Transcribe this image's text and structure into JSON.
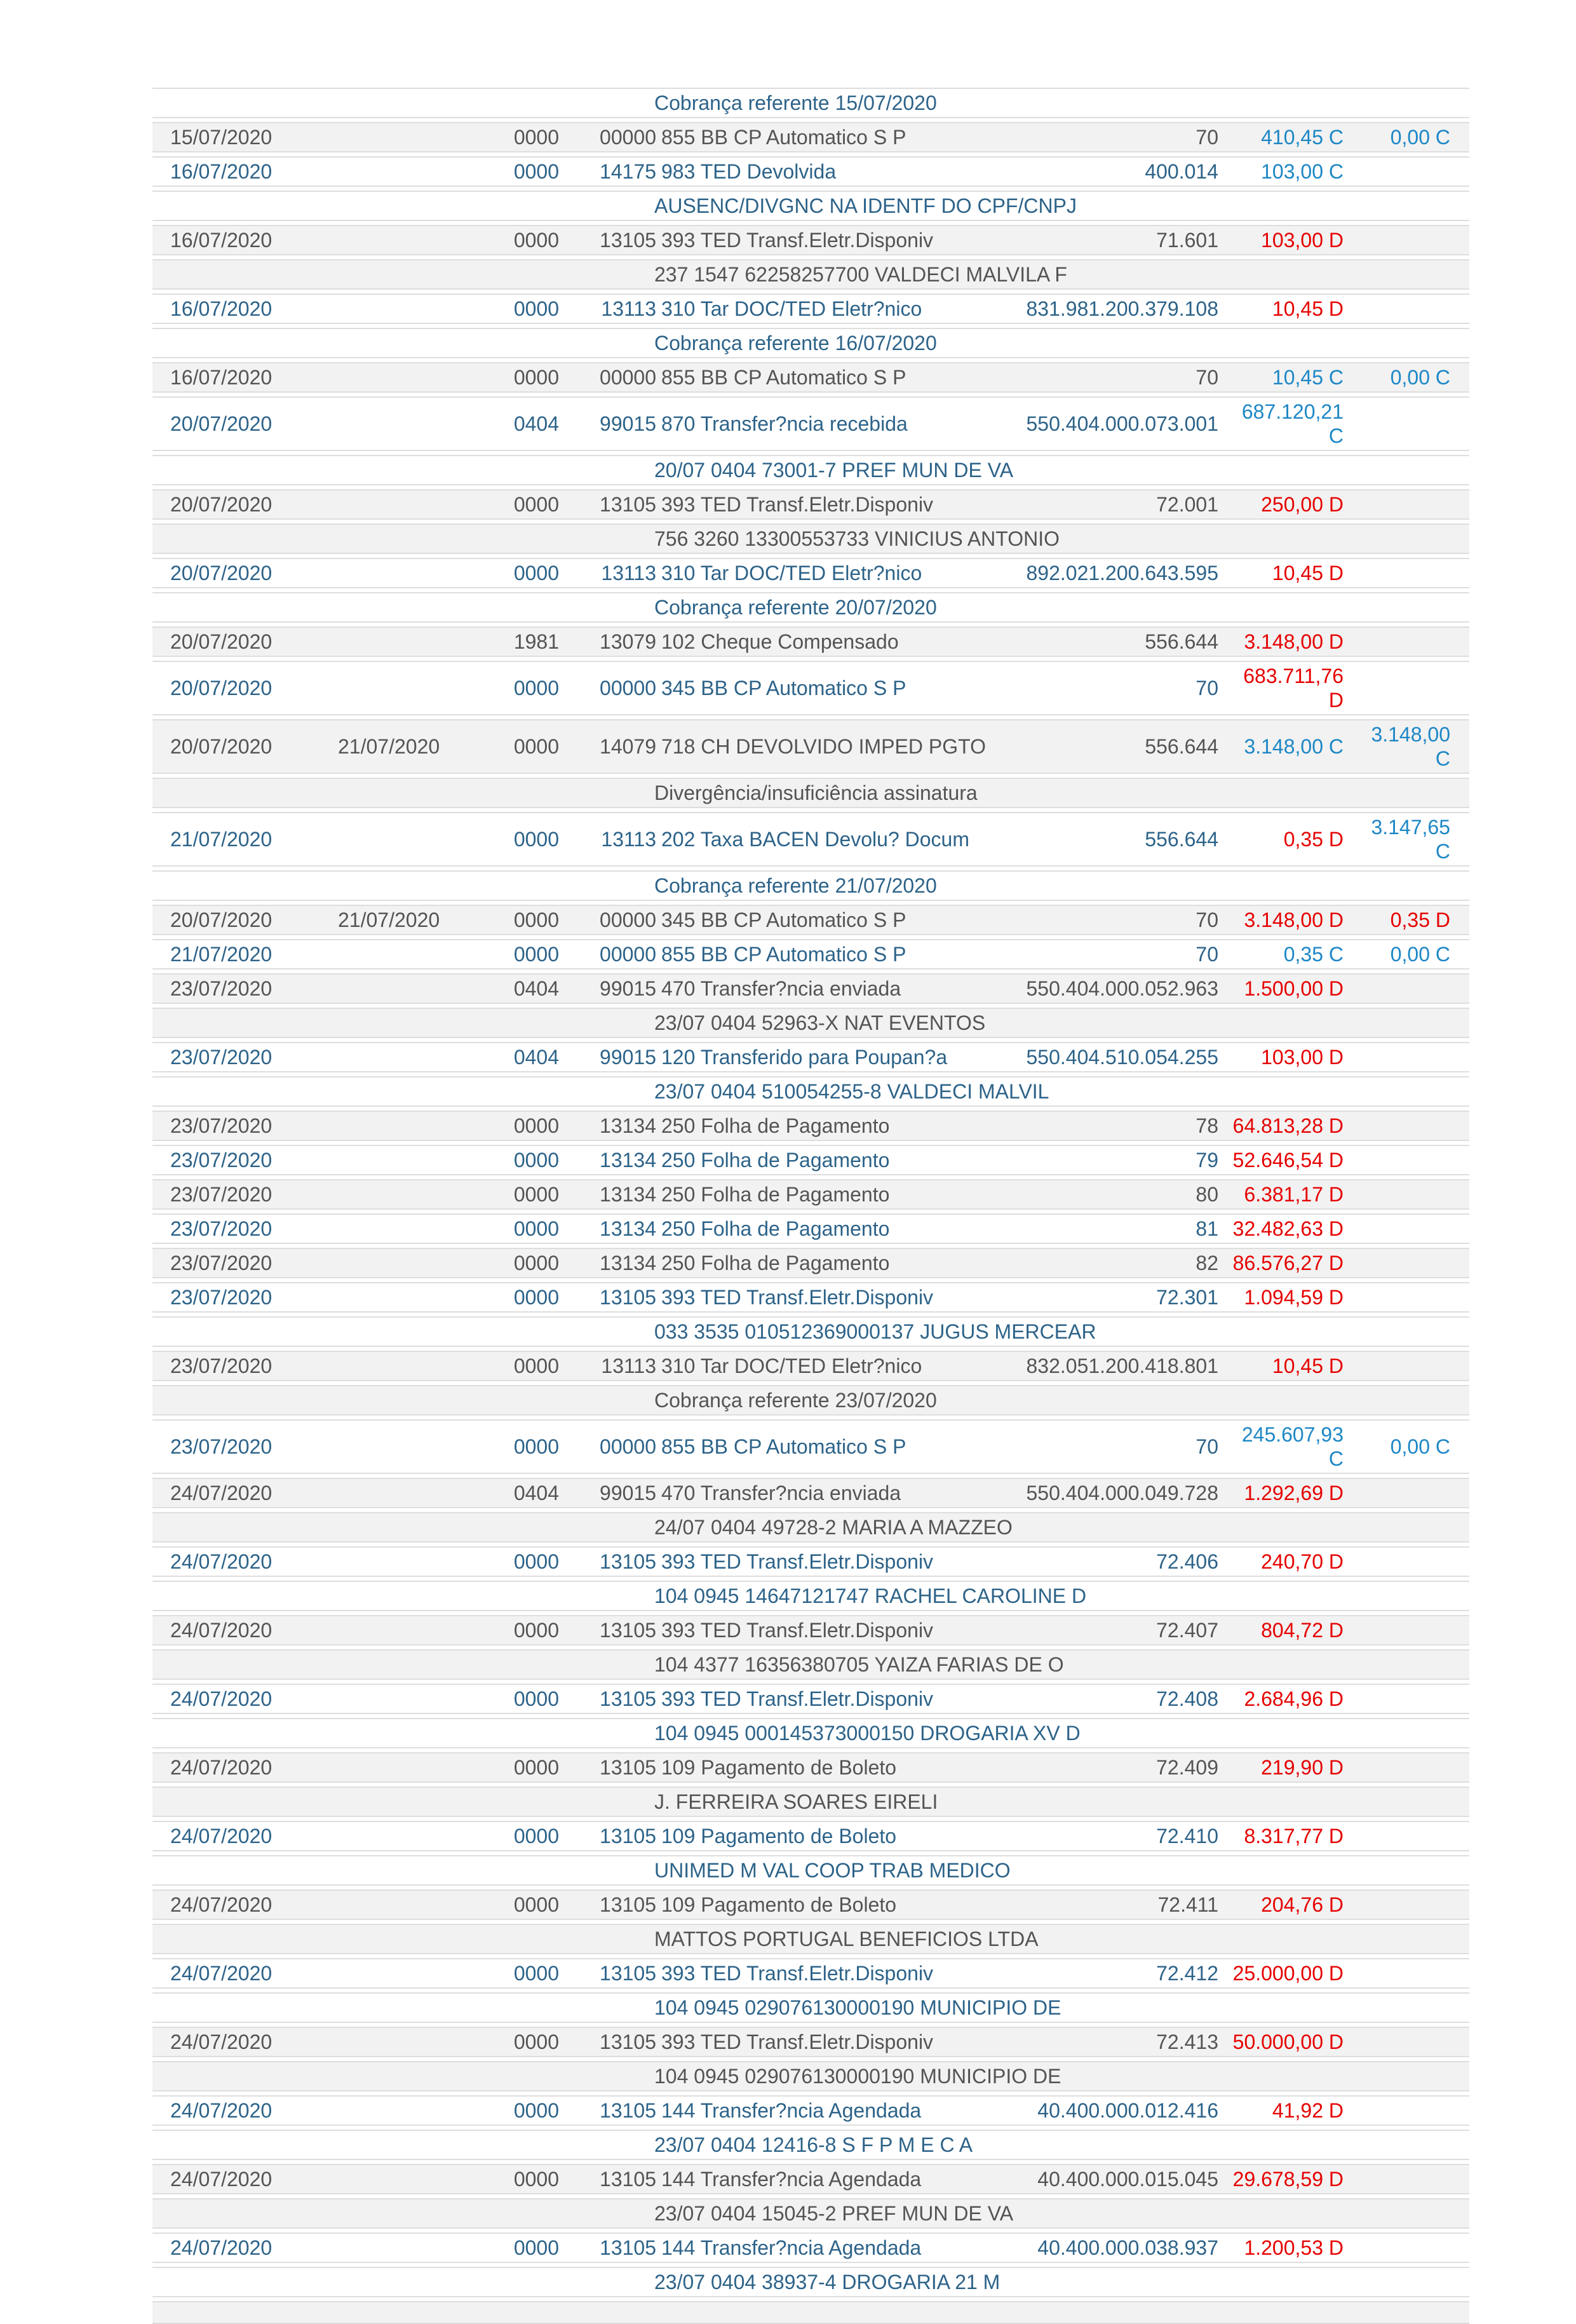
{
  "colors": {
    "row_gray_background": "#f2f2f2",
    "row_white_background": "#ffffff",
    "gray_row_text": "#545454",
    "white_row_text": "#2d6389",
    "credit_value": "#1d87c6",
    "debit_value": "#e60000",
    "row_border": "#dedede"
  },
  "statement": {
    "rows": [
      {
        "type": "header",
        "text": "Cobrança referente 15/07/2020"
      },
      {
        "type": "tx",
        "date1": "15/07/2020",
        "date2": "",
        "branch": "0000",
        "lote": "00000",
        "desc": "855 BB CP Automatico S P",
        "doc": "70",
        "value": "410,45 C",
        "balance": "0,00 C"
      },
      {
        "type": "tx",
        "date1": "16/07/2020",
        "date2": "",
        "branch": "0000",
        "lote": "14175",
        "desc": "983 TED Devolvida",
        "doc": "400.014",
        "value": "103,00 C",
        "balance": ""
      },
      {
        "type": "sub",
        "text": "AUSENC/DIVGNC NA IDENTF DO CPF/CNPJ"
      },
      {
        "type": "tx",
        "date1": "16/07/2020",
        "date2": "",
        "branch": "0000",
        "lote": "13105",
        "desc": "393 TED Transf.Eletr.Disponiv",
        "doc": "71.601",
        "value": "103,00 D",
        "balance": ""
      },
      {
        "type": "sub",
        "text": "237 1547 62258257700 VALDECI MALVILA F"
      },
      {
        "type": "tx",
        "date1": "16/07/2020",
        "date2": "",
        "branch": "0000",
        "lote": "13113",
        "desc": "310 Tar DOC/TED Eletr?nico",
        "doc": "831.981.200.379.108",
        "value": "10,45 D",
        "balance": ""
      },
      {
        "type": "header",
        "text": "Cobrança referente 16/07/2020"
      },
      {
        "type": "tx",
        "date1": "16/07/2020",
        "date2": "",
        "branch": "0000",
        "lote": "00000",
        "desc": "855 BB CP Automatico S P",
        "doc": "70",
        "value": "10,45 C",
        "balance": "0,00 C"
      },
      {
        "type": "tx",
        "date1": "20/07/2020",
        "date2": "",
        "branch": "0404",
        "lote": "99015",
        "desc": "870 Transfer?ncia recebida",
        "doc": "550.404.000.073.001",
        "value": "687.120,21 C",
        "balance": ""
      },
      {
        "type": "sub",
        "text": "20/07 0404 73001-7 PREF MUN DE VA"
      },
      {
        "type": "tx",
        "date1": "20/07/2020",
        "date2": "",
        "branch": "0000",
        "lote": "13105",
        "desc": "393 TED Transf.Eletr.Disponiv",
        "doc": "72.001",
        "value": "250,00 D",
        "balance": ""
      },
      {
        "type": "sub",
        "text": "756 3260 13300553733 VINICIUS ANTONIO"
      },
      {
        "type": "tx",
        "date1": "20/07/2020",
        "date2": "",
        "branch": "0000",
        "lote": "13113",
        "desc": "310 Tar DOC/TED Eletr?nico",
        "doc": "892.021.200.643.595",
        "value": "10,45 D",
        "balance": ""
      },
      {
        "type": "header",
        "text": "Cobrança referente 20/07/2020"
      },
      {
        "type": "tx",
        "date1": "20/07/2020",
        "date2": "",
        "branch": "1981",
        "lote": "13079",
        "desc": "102 Cheque Compensado",
        "doc": "556.644",
        "value": "3.148,00 D",
        "balance": ""
      },
      {
        "type": "tx",
        "date1": "20/07/2020",
        "date2": "",
        "branch": "0000",
        "lote": "00000",
        "desc": "345 BB CP Automatico S P",
        "doc": "70",
        "value": "683.711,76 D",
        "balance": ""
      },
      {
        "type": "tx",
        "date1": "20/07/2020",
        "date2": "21/07/2020",
        "branch": "0000",
        "lote": "14079",
        "desc": "718 CH DEVOLVIDO IMPED PGTO",
        "doc": "556.644",
        "value": "3.148,00 C",
        "balance": "3.148,00 C"
      },
      {
        "type": "sub",
        "text": "Divergência/insuficiência assinatura"
      },
      {
        "type": "tx",
        "date1": "21/07/2020",
        "date2": "",
        "branch": "0000",
        "lote": "13113",
        "desc": "202 Taxa BACEN Devolu? Docum",
        "doc": "556.644",
        "value": "0,35 D",
        "balance": "3.147,65 C"
      },
      {
        "type": "header",
        "text": "Cobrança referente 21/07/2020"
      },
      {
        "type": "tx",
        "date1": "20/07/2020",
        "date2": "21/07/2020",
        "branch": "0000",
        "lote": "00000",
        "desc": "345 BB CP Automatico S P",
        "doc": "70",
        "value": "3.148,00 D",
        "balance": "0,35 D"
      },
      {
        "type": "tx",
        "date1": "21/07/2020",
        "date2": "",
        "branch": "0000",
        "lote": "00000",
        "desc": "855 BB CP Automatico S P",
        "doc": "70",
        "value": "0,35 C",
        "balance": "0,00 C"
      },
      {
        "type": "tx",
        "date1": "23/07/2020",
        "date2": "",
        "branch": "0404",
        "lote": "99015",
        "desc": "470 Transfer?ncia enviada",
        "doc": "550.404.000.052.963",
        "value": "1.500,00 D",
        "balance": ""
      },
      {
        "type": "sub",
        "text": "23/07 0404 52963-X NAT EVENTOS"
      },
      {
        "type": "tx",
        "date1": "23/07/2020",
        "date2": "",
        "branch": "0404",
        "lote": "99015",
        "desc": "120 Transferido para Poupan?a",
        "doc": "550.404.510.054.255",
        "value": "103,00 D",
        "balance": ""
      },
      {
        "type": "sub",
        "text": "23/07 0404 510054255-8 VALDECI MALVIL"
      },
      {
        "type": "tx",
        "date1": "23/07/2020",
        "date2": "",
        "branch": "0000",
        "lote": "13134",
        "desc": "250 Folha de Pagamento",
        "doc": "78",
        "value": "64.813,28 D",
        "balance": ""
      },
      {
        "type": "tx",
        "date1": "23/07/2020",
        "date2": "",
        "branch": "0000",
        "lote": "13134",
        "desc": "250 Folha de Pagamento",
        "doc": "79",
        "value": "52.646,54 D",
        "balance": ""
      },
      {
        "type": "tx",
        "date1": "23/07/2020",
        "date2": "",
        "branch": "0000",
        "lote": "13134",
        "desc": "250 Folha de Pagamento",
        "doc": "80",
        "value": "6.381,17 D",
        "balance": ""
      },
      {
        "type": "tx",
        "date1": "23/07/2020",
        "date2": "",
        "branch": "0000",
        "lote": "13134",
        "desc": "250 Folha de Pagamento",
        "doc": "81",
        "value": "32.482,63 D",
        "balance": ""
      },
      {
        "type": "tx",
        "date1": "23/07/2020",
        "date2": "",
        "branch": "0000",
        "lote": "13134",
        "desc": "250 Folha de Pagamento",
        "doc": "82",
        "value": "86.576,27 D",
        "balance": ""
      },
      {
        "type": "tx",
        "date1": "23/07/2020",
        "date2": "",
        "branch": "0000",
        "lote": "13105",
        "desc": "393 TED Transf.Eletr.Disponiv",
        "doc": "72.301",
        "value": "1.094,59 D",
        "balance": ""
      },
      {
        "type": "sub",
        "text": "033 3535 010512369000137 JUGUS MERCEAR"
      },
      {
        "type": "tx",
        "date1": "23/07/2020",
        "date2": "",
        "branch": "0000",
        "lote": "13113",
        "desc": "310 Tar DOC/TED Eletr?nico",
        "doc": "832.051.200.418.801",
        "value": "10,45 D",
        "balance": ""
      },
      {
        "type": "header",
        "text": "Cobrança referente 23/07/2020"
      },
      {
        "type": "tx",
        "date1": "23/07/2020",
        "date2": "",
        "branch": "0000",
        "lote": "00000",
        "desc": "855 BB CP Automatico S P",
        "doc": "70",
        "value": "245.607,93 C",
        "balance": "0,00 C"
      },
      {
        "type": "tx",
        "date1": "24/07/2020",
        "date2": "",
        "branch": "0404",
        "lote": "99015",
        "desc": "470 Transfer?ncia enviada",
        "doc": "550.404.000.049.728",
        "value": "1.292,69 D",
        "balance": ""
      },
      {
        "type": "sub",
        "text": "24/07 0404 49728-2 MARIA A MAZZEO"
      },
      {
        "type": "tx",
        "date1": "24/07/2020",
        "date2": "",
        "branch": "0000",
        "lote": "13105",
        "desc": "393 TED Transf.Eletr.Disponiv",
        "doc": "72.406",
        "value": "240,70 D",
        "balance": ""
      },
      {
        "type": "sub",
        "text": "104 0945 14647121747 RACHEL CAROLINE D"
      },
      {
        "type": "tx",
        "date1": "24/07/2020",
        "date2": "",
        "branch": "0000",
        "lote": "13105",
        "desc": "393 TED Transf.Eletr.Disponiv",
        "doc": "72.407",
        "value": "804,72 D",
        "balance": ""
      },
      {
        "type": "sub",
        "text": "104 4377 16356380705 YAIZA FARIAS DE O"
      },
      {
        "type": "tx",
        "date1": "24/07/2020",
        "date2": "",
        "branch": "0000",
        "lote": "13105",
        "desc": "393 TED Transf.Eletr.Disponiv",
        "doc": "72.408",
        "value": "2.684,96 D",
        "balance": ""
      },
      {
        "type": "sub",
        "text": "104 0945 000145373000150 DROGARIA XV D"
      },
      {
        "type": "tx",
        "date1": "24/07/2020",
        "date2": "",
        "branch": "0000",
        "lote": "13105",
        "desc": "109 Pagamento de Boleto",
        "doc": "72.409",
        "value": "219,90 D",
        "balance": ""
      },
      {
        "type": "sub",
        "text": "J. FERREIRA SOARES EIRELI"
      },
      {
        "type": "tx",
        "date1": "24/07/2020",
        "date2": "",
        "branch": "0000",
        "lote": "13105",
        "desc": "109 Pagamento de Boleto",
        "doc": "72.410",
        "value": "8.317,77 D",
        "balance": ""
      },
      {
        "type": "sub",
        "text": "UNIMED M VAL COOP TRAB MEDICO"
      },
      {
        "type": "tx",
        "date1": "24/07/2020",
        "date2": "",
        "branch": "0000",
        "lote": "13105",
        "desc": "109 Pagamento de Boleto",
        "doc": "72.411",
        "value": "204,76 D",
        "balance": ""
      },
      {
        "type": "sub",
        "text": "MATTOS PORTUGAL BENEFICIOS LTDA"
      },
      {
        "type": "tx",
        "date1": "24/07/2020",
        "date2": "",
        "branch": "0000",
        "lote": "13105",
        "desc": "393 TED Transf.Eletr.Disponiv",
        "doc": "72.412",
        "value": "25.000,00 D",
        "balance": ""
      },
      {
        "type": "sub",
        "text": "104 0945 029076130000190 MUNICIPIO DE"
      },
      {
        "type": "tx",
        "date1": "24/07/2020",
        "date2": "",
        "branch": "0000",
        "lote": "13105",
        "desc": "393 TED Transf.Eletr.Disponiv",
        "doc": "72.413",
        "value": "50.000,00 D",
        "balance": ""
      },
      {
        "type": "sub",
        "text": "104 0945 029076130000190 MUNICIPIO DE"
      },
      {
        "type": "tx",
        "date1": "24/07/2020",
        "date2": "",
        "branch": "0000",
        "lote": "13105",
        "desc": "144 Transfer?ncia Agendada",
        "doc": "40.400.000.012.416",
        "value": "41,92 D",
        "balance": ""
      },
      {
        "type": "sub",
        "text": "23/07 0404 12416-8 S F P M E C A"
      },
      {
        "type": "tx",
        "date1": "24/07/2020",
        "date2": "",
        "branch": "0000",
        "lote": "13105",
        "desc": "144 Transfer?ncia Agendada",
        "doc": "40.400.000.015.045",
        "value": "29.678,59 D",
        "balance": ""
      },
      {
        "type": "sub",
        "text": "23/07 0404 15045-2 PREF MUN DE VA"
      },
      {
        "type": "tx",
        "date1": "24/07/2020",
        "date2": "",
        "branch": "0000",
        "lote": "13105",
        "desc": "144 Transfer?ncia Agendada",
        "doc": "40.400.000.038.937",
        "value": "1.200,53 D",
        "balance": ""
      },
      {
        "type": "sub",
        "text": "23/07 0404 38937-4 DROGARIA 21 M"
      }
    ]
  }
}
